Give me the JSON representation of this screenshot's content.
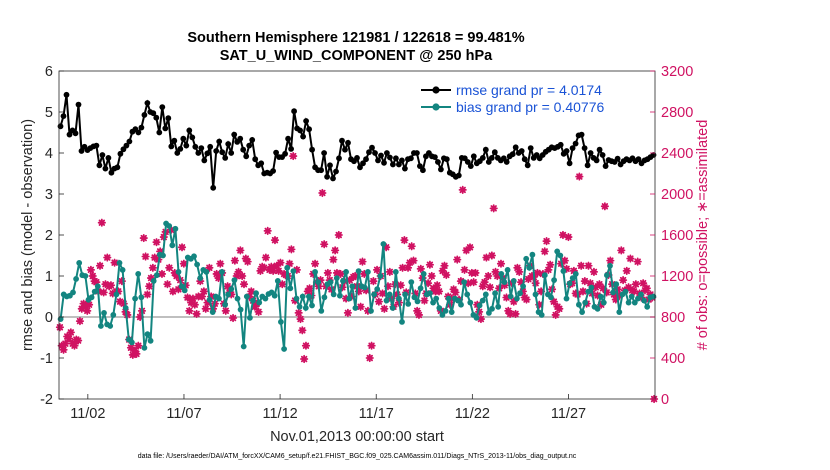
{
  "chart_data": {
    "type": "line",
    "title_line1": "Southern Hemisphere 121981 / 122618 = 99.481%",
    "title_line2": "SAT_U_WIND_COMPONENT @ 250 hPa",
    "xlabel": "Nov.01,2013 00:00:00 start",
    "ylabel_left": "rmse and bias (model - observation)",
    "ylabel_right": "# of obs: o=possible; ∗=assimilated",
    "footnote": "data file: /Users/raeder/DAI/ATM_forcXX/CAM6_setup/f.e21.FHIST_BGC.f09_025.CAM6assim.011/Diags_NTrS_2013-11/obs_diag_output.nc",
    "x_range": [
      0.5,
      31.5
    ],
    "ylim_left": [
      -2,
      6
    ],
    "ylim_right": [
      0,
      3200
    ],
    "xticks": [
      2,
      7,
      12,
      17,
      22,
      27
    ],
    "xtick_labels": [
      "11/02",
      "11/07",
      "11/12",
      "11/17",
      "11/22",
      "11/27"
    ],
    "yticks_left": [
      -2,
      -1,
      0,
      1,
      2,
      3,
      4,
      5,
      6
    ],
    "yticks_left_labels": [
      "-2",
      "-1",
      "0",
      "1",
      "2",
      "3",
      "4",
      "5",
      "6"
    ],
    "yticks_right": [
      0,
      400,
      800,
      1200,
      1600,
      2000,
      2400,
      2800,
      3200
    ],
    "yticks_right_labels": [
      "0",
      "400",
      "800",
      "1200",
      "1600",
      "2000",
      "2400",
      "2800",
      "3200"
    ],
    "colors": {
      "rmse": "#000000",
      "bias": "#138580",
      "obs": "#d01262",
      "zero_line": "#aaaaaa",
      "legend_text": "#1a53d6"
    },
    "series": [
      {
        "name": "rmse grand pr = 4.0174",
        "values": [
          4.65,
          4.9,
          5.42,
          4.45,
          4.55,
          4.48,
          5.18,
          4.05,
          4.15,
          4.07,
          4.12,
          4.16,
          4.18,
          3.7,
          3.95,
          3.62,
          3.88,
          3.52,
          3.62,
          3.65,
          3.98,
          4.09,
          4.18,
          4.28,
          4.52,
          4.58,
          4.5,
          4.62,
          4.93,
          5.22,
          5.0,
          4.97,
          4.86,
          4.5,
          5.12,
          4.6,
          4.85,
          4.16,
          4.3,
          4.0,
          4.1,
          4.35,
          4.18,
          4.55,
          4.38,
          4.15,
          4.0,
          4.12,
          3.82,
          3.99,
          4.15,
          3.15,
          4.05,
          4.28,
          4.02,
          3.88,
          4.22,
          4.0,
          4.45,
          4.27,
          4.35,
          4.08,
          3.92,
          4.18,
          4.32,
          3.85,
          3.7,
          3.75,
          3.5,
          3.52,
          3.5,
          3.56,
          4.01,
          3.9,
          3.9,
          3.98,
          4.35,
          4.1,
          5.02,
          4.6,
          4.55,
          4.4,
          4.78,
          4.58,
          4.08,
          3.65,
          3.58,
          3.58,
          4.0,
          3.42,
          3.7,
          3.38,
          3.55,
          3.87,
          4.3,
          4.08,
          4.25,
          3.85,
          3.8,
          3.88,
          3.65,
          3.75,
          3.85,
          4.02,
          4.13,
          4.0,
          3.82,
          3.94,
          3.76,
          4.0,
          3.89,
          3.72,
          3.87,
          3.72,
          3.82,
          3.62,
          3.85,
          3.87,
          4.0,
          4.0,
          3.68,
          3.58,
          3.92,
          4.0,
          3.92,
          3.9,
          3.78,
          3.6,
          3.87,
          3.85,
          3.52,
          3.48,
          3.42,
          3.45,
          3.88,
          3.87,
          3.78,
          3.68,
          3.92,
          3.75,
          3.8,
          3.88,
          4.08,
          3.78,
          3.88,
          4.02,
          3.88,
          3.82,
          3.87,
          3.78,
          3.92,
          3.97,
          4.14,
          4.0,
          4.05,
          3.85,
          3.7,
          4.12,
          3.88,
          3.95,
          3.87,
          3.95,
          4.03,
          4.08,
          4.14,
          4.12,
          4.15,
          4.2,
          3.98,
          4.05,
          3.75,
          4.12,
          4.23,
          4.43,
          4.45,
          4.12,
          3.7,
          4.0,
          3.88,
          3.82,
          4.08,
          3.95,
          3.68,
          3.83,
          3.8,
          3.78,
          3.86,
          3.72,
          3.8,
          3.85,
          3.82,
          3.87,
          3.8,
          3.85,
          3.75,
          3.82,
          3.85,
          3.9,
          3.95
        ]
      },
      {
        "name": "bias grand pr = 0.40776",
        "values": [
          -0.05,
          0.55,
          0.5,
          0.52,
          0.6,
          0.93,
          1.32,
          1.02,
          1.0,
          0.42,
          0.48,
          0.62,
          0.75,
          -0.22,
          0.1,
          -0.18,
          -0.22,
          0.05,
          0.55,
          1.32,
          1.15,
          0.22,
          -0.55,
          -0.62,
          0.45,
          1.05,
          0.48,
          -0.75,
          -0.42,
          -0.58,
          0.88,
          1.02,
          1.52,
          1.5,
          2.28,
          2.22,
          1.75,
          2.15,
          1.1,
          0.75,
          0.65,
          1.45,
          1.42,
          1.48,
          1.28,
          0.95,
          1.15,
          1.1,
          0.42,
          0.12,
          0.5,
          0.45,
          1.1,
          0.3,
          0.55,
          0.68,
          0.9,
          0.45,
          0.18,
          -0.72,
          0.5,
          -0.02,
          0.4,
          0.58,
          0.35,
          0.5,
          0.45,
          0.56,
          0.6,
          0.52,
          0.88,
          -0.12,
          -0.78,
          1.2,
          0.7,
          1.12,
          0.45,
          0.25,
          0.5,
          0.22,
          0.5,
          0.28,
          1.1,
          0.85,
          0.15,
          0.48,
          0.8,
          0.85,
          0.55,
          0.95,
          0.52,
          0.88,
          1.1,
          0.45,
          0.75,
          0.22,
          1.12,
          0.75,
          0.72,
          1.1,
          0.15,
          0.55,
          0.68,
          1.0,
          1.78,
          0.4,
          0.55,
          0.22,
          1.1,
          0.45,
          -0.12,
          0.55,
          0.32,
          0.85,
          0.48,
          0.38,
          0.7,
          1.05,
          0.55,
          0.58,
          0.35,
          0.45,
          0.22,
          0.05,
          0.15,
          0.45,
          0.12,
          0.45,
          0.4,
          0.3,
          0.85,
          0.55,
          0.35,
          0.05,
          -0.02,
          0.28,
          0.4,
          0.55,
          0.1,
          0.2,
          0.58,
          0.25,
          1.05,
          0.85,
          1.15,
          0.5,
          0.88,
          0.45,
          0.58,
          0.75,
          1.42,
          1.2,
          1.52,
          0.55,
          0.12,
          0.05,
          1.02,
          0.55,
          0.48,
          0.9,
          1.6,
          1.5,
          1.12,
          0.45,
          0.82,
          0.95,
          1.05,
          0.3,
          0.12,
          0.35,
          0.62,
          0.72,
          0.25,
          0.2,
          0.5,
          0.35,
          1.02,
          1.25,
          0.6,
          0.8,
          0.12,
          0.55,
          0.62,
          0.35,
          0.5,
          0.35,
          0.45,
          0.55,
          0.4,
          0.25,
          0.48,
          0.5
        ]
      },
      {
        "name": "# obs assimilated",
        "values": [
          700,
          520,
          480,
          540,
          610,
          590,
          650,
          540,
          520,
          580,
          570,
          760,
          880,
          930,
          900,
          860,
          920,
          1260,
          1200,
          1150,
          1140,
          1050,
          1300,
          1720,
          1040,
          1120,
          1380,
          1100,
          1110,
          1030,
          1330,
          1050,
          1050,
          950,
          1150,
          930,
          850,
          820,
          580,
          500,
          430,
          470,
          440,
          520,
          800,
          860,
          1570,
          1390,
          1020,
          1100,
          1180,
          1280,
          1380,
          1530,
          1360,
          1440,
          1220,
          1580,
          1630,
          1120,
          1280,
          1650,
          1050,
          1230,
          1200,
          1070,
          1160,
          1480,
          1320,
          1110,
          990,
          860,
          940,
          980,
          920,
          830,
          1000,
          1150,
          1000,
          1050,
          880,
          940,
          1280,
          1000,
          880,
          930,
          1220,
          1180,
          1320,
          1230,
          930,
          860,
          1100,
          1040,
          1020,
          790,
          1350,
          1200,
          1240,
          1450,
          1200,
          1120,
          1370,
          1340,
          1000,
          1050,
          960,
          900,
          930,
          850,
          1250,
          1290,
          1280,
          1380,
          1640,
          1260,
          1290,
          1250,
          1550,
          1300,
          1250,
          1330,
          1120,
          1220,
          1210,
          1200,
          1320,
          1460,
          2370,
          960,
          1260,
          840,
          780,
          670,
          390,
          520,
          1050,
          1080,
          1010,
          1220,
          1320,
          1140,
          1100,
          1160,
          2010,
          1510,
          1100,
          1230,
          1160,
          1070,
          1360,
          1450,
          1230,
          1600,
          1220,
          1090,
          1150,
          980,
          840,
          1160,
          1000,
          1190,
          1200,
          1100,
          1050,
          900,
          1340,
          1220,
          1060,
          860,
          400,
          520,
          1150,
          1020,
          1260,
          950,
          1200,
          1030,
          880,
          1480,
          1100,
          1240,
          980,
          900,
          1120,
          1020,
          940,
          1110,
          1280,
          1550,
          1040,
          1280,
          1330,
          1490,
          1350,
          1030,
          860,
          820,
          1270,
          1180,
          960,
          1030,
          1130,
          1310,
          1200,
          1080,
          1050,
          1110,
          1050,
          860,
          1250,
          1300,
          1210,
          1000,
          920,
          980,
          1070,
          1040,
          1360,
          970,
          1150,
          2040,
          1260,
          1450,
          1130,
          1480,
          1230,
          1140,
          1230,
          920,
          850,
          780,
          1100,
          1140,
          1380,
          1200,
          1090,
          1400,
          1860,
          1240,
          1200,
          1080,
          1320,
          1180,
          1110,
          990,
          860,
          830,
          1130,
          950,
          830,
          1280,
          1240,
          1140,
          1050,
          990,
          970,
          1170,
          1300,
          1200,
          1190,
          1130,
          1230,
          920,
          1050,
          1220,
          1440,
          1540,
          1260,
          1310,
          1070,
          950,
          820,
          900,
          880,
          1320,
          1600,
          1350,
          1270,
          1580,
          1120,
          1130,
          1250,
          1030,
          1020,
          2170,
          1300,
          1050,
          1150,
          930,
          1300,
          1130,
          1030,
          1240,
          1090,
          1010,
          1120,
          920,
          1080,
          1880,
          1040,
          1210,
          1350,
          1120,
          1020,
          970,
          1070,
          1010,
          1450,
          1160,
          1060,
          1250,
          1090,
          1370,
          1060,
          1050,
          1120,
          1340,
          1030,
          990,
          1130,
          1060,
          1080,
          970,
          1020,
          990,
          0
        ],
        "marker": "asterisk"
      }
    ],
    "legend_position": "top-right"
  }
}
